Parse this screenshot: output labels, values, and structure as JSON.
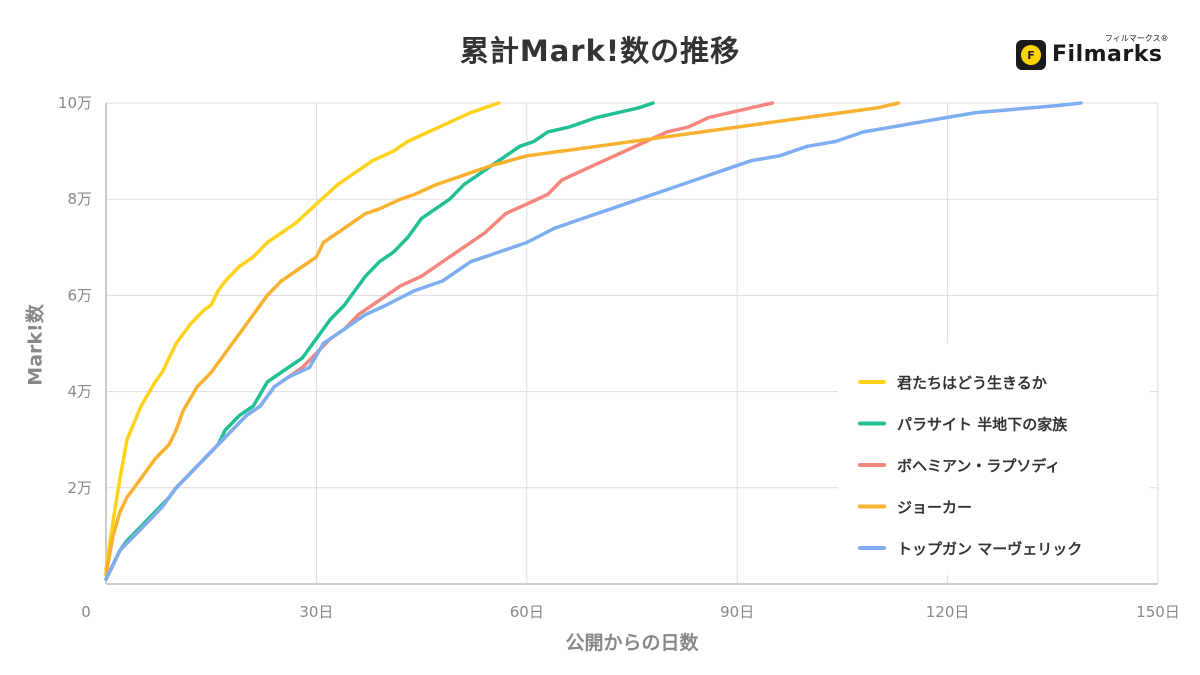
{
  "brand": {
    "name": "Filmarks",
    "kana": "フィルマークス®",
    "icon_glyph": "F",
    "icon": "filmarks-sun-icon"
  },
  "chart_data": {
    "type": "line",
    "title": "累計Mark!数の推移",
    "xlabel": "公開からの日数",
    "ylabel": "Mark!数",
    "xlim": [
      0,
      150
    ],
    "ylim": [
      0,
      100000
    ],
    "x_ticks": [
      0,
      30,
      60,
      90,
      120,
      150
    ],
    "x_tick_labels": [
      "0",
      "30日",
      "60日",
      "90日",
      "120日",
      "150日"
    ],
    "y_ticks": [
      20000,
      40000,
      60000,
      80000,
      100000
    ],
    "y_tick_labels": [
      "2万",
      "4万",
      "6万",
      "8万",
      "10万"
    ],
    "grid": true,
    "legend_position": "right",
    "series": [
      {
        "name": "君たちはどう生きるか",
        "color": "#ffd21a",
        "points": [
          [
            0,
            3000
          ],
          [
            1,
            13000
          ],
          [
            2,
            22000
          ],
          [
            3,
            30000
          ],
          [
            5,
            37000
          ],
          [
            7,
            42000
          ],
          [
            8,
            44000
          ],
          [
            10,
            50000
          ],
          [
            12,
            54000
          ],
          [
            14,
            57000
          ],
          [
            15,
            58000
          ],
          [
            16,
            61000
          ],
          [
            17,
            63000
          ],
          [
            19,
            66000
          ],
          [
            21,
            68000
          ],
          [
            23,
            71000
          ],
          [
            25,
            73000
          ],
          [
            27,
            75000
          ],
          [
            30,
            79000
          ],
          [
            33,
            83000
          ],
          [
            36,
            86000
          ],
          [
            38,
            88000
          ],
          [
            41,
            90000
          ],
          [
            43,
            92000
          ],
          [
            46,
            94000
          ],
          [
            49,
            96000
          ],
          [
            52,
            98000
          ],
          [
            56,
            100000
          ]
        ]
      },
      {
        "name": "パラサイト 半地下の家族",
        "color": "#20c094",
        "points": [
          [
            0,
            1000
          ],
          [
            1,
            4000
          ],
          [
            2,
            7000
          ],
          [
            3,
            9000
          ],
          [
            5,
            12000
          ],
          [
            7,
            15000
          ],
          [
            9,
            18000
          ],
          [
            10,
            20000
          ],
          [
            12,
            23000
          ],
          [
            14,
            26000
          ],
          [
            16,
            29000
          ],
          [
            17,
            32000
          ],
          [
            19,
            35000
          ],
          [
            21,
            37000
          ],
          [
            23,
            42000
          ],
          [
            26,
            45000
          ],
          [
            28,
            47000
          ],
          [
            30,
            51000
          ],
          [
            32,
            55000
          ],
          [
            34,
            58000
          ],
          [
            35,
            60000
          ],
          [
            37,
            64000
          ],
          [
            39,
            67000
          ],
          [
            41,
            69000
          ],
          [
            43,
            72000
          ],
          [
            45,
            76000
          ],
          [
            47,
            78000
          ],
          [
            49,
            80000
          ],
          [
            51,
            83000
          ],
          [
            53,
            85000
          ],
          [
            55,
            87000
          ],
          [
            57,
            89000
          ],
          [
            59,
            91000
          ],
          [
            61,
            92000
          ],
          [
            63,
            94000
          ],
          [
            66,
            95000
          ],
          [
            70,
            97000
          ],
          [
            73,
            98000
          ],
          [
            76,
            99000
          ],
          [
            78,
            100000
          ]
        ]
      },
      {
        "name": "ボヘミアン・ラプソディ",
        "color": "#f5867d",
        "points": [
          [
            0,
            1000
          ],
          [
            1,
            4000
          ],
          [
            2,
            7000
          ],
          [
            4,
            10000
          ],
          [
            6,
            13000
          ],
          [
            8,
            16000
          ],
          [
            10,
            20000
          ],
          [
            12,
            23000
          ],
          [
            14,
            26000
          ],
          [
            16,
            29000
          ],
          [
            18,
            32000
          ],
          [
            20,
            35000
          ],
          [
            22,
            37000
          ],
          [
            24,
            41000
          ],
          [
            26,
            43000
          ],
          [
            28,
            45000
          ],
          [
            30,
            48000
          ],
          [
            32,
            51000
          ],
          [
            34,
            53000
          ],
          [
            36,
            56000
          ],
          [
            38,
            58000
          ],
          [
            40,
            60000
          ],
          [
            42,
            62000
          ],
          [
            45,
            64000
          ],
          [
            48,
            67000
          ],
          [
            51,
            70000
          ],
          [
            54,
            73000
          ],
          [
            57,
            77000
          ],
          [
            60,
            79000
          ],
          [
            63,
            81000
          ],
          [
            65,
            84000
          ],
          [
            68,
            86000
          ],
          [
            71,
            88000
          ],
          [
            74,
            90000
          ],
          [
            77,
            92000
          ],
          [
            80,
            94000
          ],
          [
            83,
            95000
          ],
          [
            86,
            97000
          ],
          [
            89,
            98000
          ],
          [
            92,
            99000
          ],
          [
            95,
            100000
          ]
        ]
      },
      {
        "name": "ジョーカー",
        "color": "#f9b130",
        "points": [
          [
            0,
            2000
          ],
          [
            1,
            10000
          ],
          [
            2,
            15000
          ],
          [
            3,
            18000
          ],
          [
            5,
            22000
          ],
          [
            7,
            26000
          ],
          [
            9,
            29000
          ],
          [
            10,
            32000
          ],
          [
            11,
            36000
          ],
          [
            13,
            41000
          ],
          [
            15,
            44000
          ],
          [
            17,
            48000
          ],
          [
            19,
            52000
          ],
          [
            21,
            56000
          ],
          [
            23,
            60000
          ],
          [
            25,
            63000
          ],
          [
            28,
            66000
          ],
          [
            30,
            68000
          ],
          [
            31,
            71000
          ],
          [
            33,
            73000
          ],
          [
            35,
            75000
          ],
          [
            37,
            77000
          ],
          [
            39,
            78000
          ],
          [
            42,
            80000
          ],
          [
            44,
            81000
          ],
          [
            47,
            83000
          ],
          [
            51,
            85000
          ],
          [
            55,
            87000
          ],
          [
            60,
            89000
          ],
          [
            65,
            90000
          ],
          [
            70,
            91000
          ],
          [
            75,
            92000
          ],
          [
            80,
            93000
          ],
          [
            85,
            94000
          ],
          [
            90,
            95000
          ],
          [
            95,
            96000
          ],
          [
            100,
            97000
          ],
          [
            105,
            98000
          ],
          [
            110,
            99000
          ],
          [
            113,
            100000
          ]
        ]
      },
      {
        "name": "トップガン マーヴェリック",
        "color": "#7eaef0",
        "points": [
          [
            0,
            1000
          ],
          [
            1,
            4000
          ],
          [
            2,
            7000
          ],
          [
            4,
            10000
          ],
          [
            6,
            13000
          ],
          [
            8,
            16000
          ],
          [
            10,
            20000
          ],
          [
            12,
            23000
          ],
          [
            14,
            26000
          ],
          [
            16,
            29000
          ],
          [
            18,
            32000
          ],
          [
            20,
            35000
          ],
          [
            22,
            37000
          ],
          [
            24,
            41000
          ],
          [
            26,
            43000
          ],
          [
            29,
            45000
          ],
          [
            31,
            50000
          ],
          [
            34,
            53000
          ],
          [
            37,
            56000
          ],
          [
            40,
            58000
          ],
          [
            44,
            61000
          ],
          [
            48,
            63000
          ],
          [
            52,
            67000
          ],
          [
            56,
            69000
          ],
          [
            60,
            71000
          ],
          [
            64,
            74000
          ],
          [
            68,
            76000
          ],
          [
            72,
            78000
          ],
          [
            76,
            80000
          ],
          [
            80,
            82000
          ],
          [
            84,
            84000
          ],
          [
            88,
            86000
          ],
          [
            92,
            88000
          ],
          [
            96,
            89000
          ],
          [
            100,
            91000
          ],
          [
            104,
            92000
          ],
          [
            108,
            94000
          ],
          [
            112,
            95000
          ],
          [
            116,
            96000
          ],
          [
            120,
            97000
          ],
          [
            124,
            98000
          ],
          [
            128,
            98500
          ],
          [
            132,
            99000
          ],
          [
            136,
            99500
          ],
          [
            139,
            100000
          ]
        ]
      }
    ]
  }
}
